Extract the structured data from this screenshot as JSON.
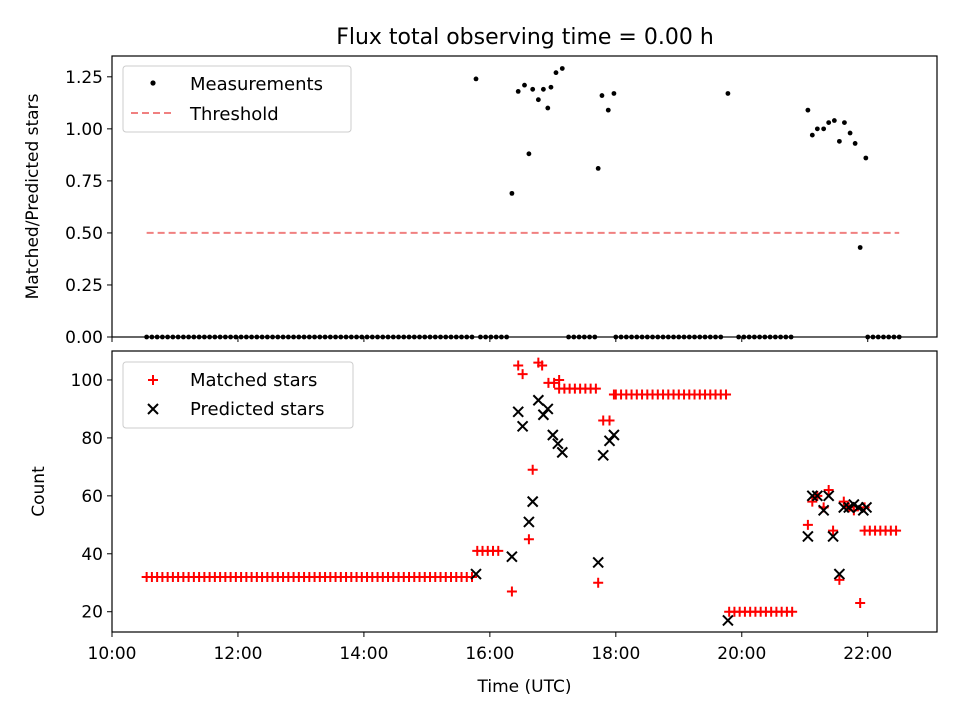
{
  "title": "Flux total observing time = 0.00 h",
  "chart_data": [
    {
      "type": "scatter",
      "ylabel": "Matched/Predicted stars",
      "xlim": [
        10.0,
        23.1
      ],
      "ylim": [
        0.0,
        1.35
      ],
      "yticks": [
        0.0,
        0.25,
        0.5,
        0.75,
        1.0,
        1.25
      ],
      "ytick_labels": [
        "0.00",
        "0.25",
        "0.50",
        "0.75",
        "1.00",
        "1.25"
      ],
      "legend": {
        "placement": "top-left",
        "entries": [
          "Measurements",
          "Threshold"
        ]
      },
      "series": [
        {
          "name": "Measurements",
          "color": "#000000",
          "marker": "dot",
          "zero_run_ranges": [
            [
              10.55,
              15.75
            ],
            [
              15.85,
              16.3
            ],
            [
              17.25,
              17.7
            ],
            [
              18.0,
              19.7
            ],
            [
              19.95,
              20.8
            ],
            [
              22.0,
              22.5
            ]
          ],
          "zero_run_step": 0.08333,
          "points": [
            [
              15.78,
              1.24
            ],
            [
              16.35,
              0.69
            ],
            [
              16.45,
              1.18
            ],
            [
              16.55,
              1.21
            ],
            [
              16.62,
              0.88
            ],
            [
              16.68,
              1.19
            ],
            [
              16.77,
              1.14
            ],
            [
              16.85,
              1.19
            ],
            [
              16.92,
              1.1
            ],
            [
              16.97,
              1.2
            ],
            [
              17.05,
              1.27
            ],
            [
              17.15,
              1.29
            ],
            [
              17.72,
              0.81
            ],
            [
              17.78,
              1.16
            ],
            [
              17.88,
              1.09
            ],
            [
              17.97,
              1.17
            ],
            [
              19.78,
              1.17
            ],
            [
              21.05,
              1.09
            ],
            [
              21.12,
              0.97
            ],
            [
              21.2,
              1.0
            ],
            [
              21.3,
              1.0
            ],
            [
              21.38,
              1.03
            ],
            [
              21.47,
              1.04
            ],
            [
              21.55,
              0.94
            ],
            [
              21.63,
              1.03
            ],
            [
              21.72,
              0.98
            ],
            [
              21.8,
              0.93
            ],
            [
              21.88,
              0.43
            ],
            [
              21.97,
              0.86
            ]
          ]
        },
        {
          "name": "Threshold",
          "color": "#f08080",
          "style": "dashed",
          "x": [
            10.55,
            22.5
          ],
          "y": [
            0.5,
            0.5
          ]
        }
      ]
    },
    {
      "type": "scatter",
      "xlabel": "Time (UTC)",
      "ylabel": "Count",
      "xlim": [
        10.0,
        23.1
      ],
      "ylim": [
        13,
        110
      ],
      "xticks": [
        10,
        12,
        14,
        16,
        18,
        20,
        22
      ],
      "xtick_labels": [
        "10:00",
        "12:00",
        "14:00",
        "16:00",
        "18:00",
        "20:00",
        "22:00"
      ],
      "yticks": [
        20,
        40,
        60,
        80,
        100
      ],
      "ytick_labels": [
        "20",
        "40",
        "60",
        "80",
        "100"
      ],
      "legend": {
        "placement": "top-left",
        "entries": [
          "Matched stars",
          "Predicted stars"
        ]
      },
      "series": [
        {
          "name": "Matched stars",
          "color": "#ff0000",
          "marker": "plus",
          "runs": [
            {
              "from": 10.55,
              "to": 15.75,
              "step": 0.08333,
              "y": 32
            },
            {
              "from": 15.8,
              "to": 16.2,
              "step": 0.08333,
              "y": 41
            },
            {
              "from": 17.1,
              "to": 17.7,
              "step": 0.08333,
              "y": 97
            },
            {
              "from": 18.0,
              "to": 19.75,
              "step": 0.08333,
              "y": 95
            },
            {
              "from": 19.8,
              "to": 20.8,
              "step": 0.08333,
              "y": 20
            },
            {
              "from": 21.95,
              "to": 22.5,
              "step": 0.08333,
              "y": 48
            }
          ],
          "points": [
            [
              16.35,
              27
            ],
            [
              16.45,
              105
            ],
            [
              16.52,
              102
            ],
            [
              16.62,
              45
            ],
            [
              16.68,
              69
            ],
            [
              16.77,
              106
            ],
            [
              16.83,
              105
            ],
            [
              16.93,
              99
            ],
            [
              17.02,
              99
            ],
            [
              17.1,
              100
            ],
            [
              17.72,
              30
            ],
            [
              17.8,
              86
            ],
            [
              17.9,
              86
            ],
            [
              17.97,
              95
            ],
            [
              21.05,
              50
            ],
            [
              21.12,
              58
            ],
            [
              21.2,
              60
            ],
            [
              21.3,
              56
            ],
            [
              21.38,
              62
            ],
            [
              21.45,
              48
            ],
            [
              21.55,
              31
            ],
            [
              21.62,
              58
            ],
            [
              21.7,
              56
            ],
            [
              21.78,
              55
            ],
            [
              21.88,
              23
            ],
            [
              21.95,
              56
            ]
          ]
        },
        {
          "name": "Predicted stars",
          "color": "#000000",
          "marker": "x",
          "points": [
            [
              15.78,
              33
            ],
            [
              16.35,
              39
            ],
            [
              16.45,
              89
            ],
            [
              16.52,
              84
            ],
            [
              16.62,
              51
            ],
            [
              16.68,
              58
            ],
            [
              16.77,
              93
            ],
            [
              16.85,
              88
            ],
            [
              16.92,
              90
            ],
            [
              17.0,
              81
            ],
            [
              17.08,
              78
            ],
            [
              17.15,
              75
            ],
            [
              17.72,
              37
            ],
            [
              17.8,
              74
            ],
            [
              17.9,
              79
            ],
            [
              17.97,
              81
            ],
            [
              19.78,
              17
            ],
            [
              21.05,
              46
            ],
            [
              21.12,
              60
            ],
            [
              21.2,
              60
            ],
            [
              21.3,
              55
            ],
            [
              21.38,
              60
            ],
            [
              21.45,
              46
            ],
            [
              21.55,
              33
            ],
            [
              21.62,
              56
            ],
            [
              21.7,
              56
            ],
            [
              21.78,
              57
            ],
            [
              21.85,
              56
            ],
            [
              21.93,
              55
            ],
            [
              21.98,
              56
            ]
          ]
        }
      ]
    }
  ]
}
